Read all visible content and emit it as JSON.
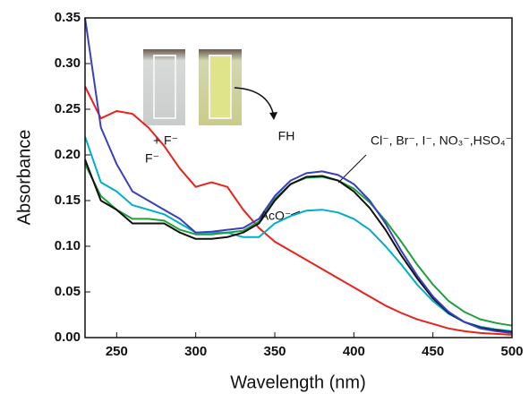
{
  "chart_data": {
    "type": "line",
    "x_label": "Wavelength (nm)",
    "y_label": "Absorbance",
    "x": [
      230,
      240,
      250,
      260,
      270,
      280,
      290,
      300,
      310,
      320,
      330,
      340,
      350,
      360,
      370,
      380,
      390,
      400,
      410,
      420,
      430,
      440,
      450,
      460,
      470,
      480,
      490,
      500
    ],
    "series": [
      {
        "color": "#e8221c",
        "values": [
          0.275,
          0.24,
          0.248,
          0.245,
          0.23,
          0.21,
          0.185,
          0.165,
          0.17,
          0.165,
          0.14,
          0.12,
          0.105,
          0.095,
          0.085,
          0.075,
          0.065,
          0.055,
          0.045,
          0.035,
          0.027,
          0.02,
          0.015,
          0.01,
          0.007,
          0.005,
          0.004,
          0.003
        ]
      },
      {
        "color": "#00aec8",
        "values": [
          0.22,
          0.17,
          0.16,
          0.145,
          0.14,
          0.135,
          0.125,
          0.115,
          0.115,
          0.115,
          0.11,
          0.11,
          0.125,
          0.133,
          0.139,
          0.14,
          0.137,
          0.13,
          0.118,
          0.1,
          0.08,
          0.058,
          0.04,
          0.026,
          0.017,
          0.012,
          0.009,
          0.007
        ]
      },
      {
        "color": "#1fa03c",
        "values": [
          0.19,
          0.155,
          0.14,
          0.13,
          0.13,
          0.128,
          0.118,
          0.113,
          0.113,
          0.115,
          0.117,
          0.127,
          0.152,
          0.168,
          0.175,
          0.176,
          0.172,
          0.163,
          0.148,
          0.128,
          0.105,
          0.08,
          0.058,
          0.04,
          0.028,
          0.02,
          0.016,
          0.013
        ]
      },
      {
        "color": "#111111",
        "values": [
          0.195,
          0.15,
          0.14,
          0.125,
          0.125,
          0.125,
          0.115,
          0.108,
          0.108,
          0.11,
          0.115,
          0.125,
          0.15,
          0.168,
          0.176,
          0.177,
          0.172,
          0.16,
          0.142,
          0.118,
          0.09,
          0.065,
          0.043,
          0.027,
          0.017,
          0.011,
          0.008,
          0.006
        ]
      },
      {
        "color": "#3a3fc0",
        "values": [
          0.35,
          0.23,
          0.19,
          0.16,
          0.15,
          0.14,
          0.13,
          0.115,
          0.116,
          0.118,
          0.12,
          0.13,
          0.155,
          0.172,
          0.18,
          0.182,
          0.178,
          0.168,
          0.15,
          0.125,
          0.095,
          0.068,
          0.045,
          0.028,
          0.017,
          0.01,
          0.007,
          0.005
        ]
      }
    ],
    "xlim": [
      230,
      500
    ],
    "xticks": [
      250,
      300,
      350,
      400,
      450,
      500
    ],
    "ylim": [
      0,
      0.35
    ],
    "yticks": [
      {
        "value": 0,
        "label": "0.00"
      },
      {
        "value": 0.05,
        "label": "0.05"
      },
      {
        "value": 0.1,
        "label": "0.10"
      },
      {
        "value": 0.15,
        "label": "0.15"
      },
      {
        "value": 0.2,
        "label": "0.20"
      },
      {
        "value": 0.25,
        "label": "0.25"
      },
      {
        "value": 0.3,
        "label": "0.30"
      },
      {
        "value": 0.35,
        "label": "0.35"
      }
    ],
    "annotations": [
      "+ F⁻",
      "F⁻",
      "FH",
      "AcO⁻",
      "Cl⁻, Br⁻, I⁻, NO₃⁻,HSO₄⁻"
    ]
  }
}
